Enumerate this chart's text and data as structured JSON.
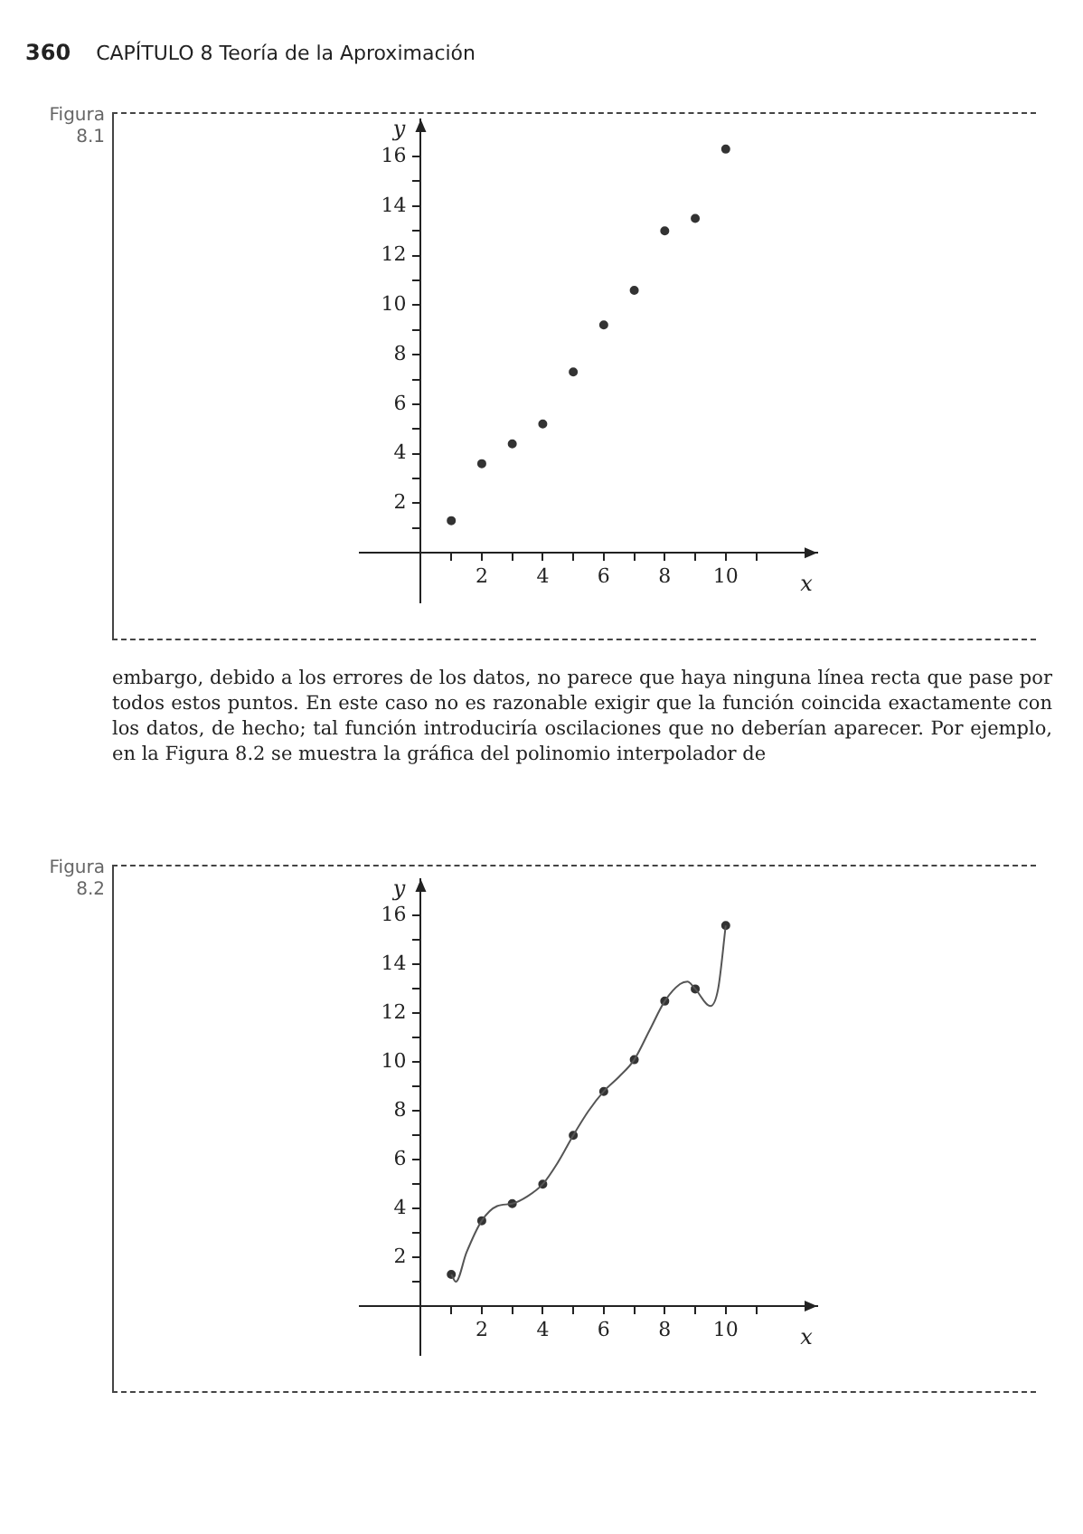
{
  "chart_data": [
    {
      "type": "scatter",
      "xlabel": "x",
      "ylabel": "y",
      "annotations": [
        "Figura 8.1",
        "360",
        "CAPÍTULO 8  Teoría de la Aproximación",
        "embargo, debido a los errores de los datos, no parece que haya ninguna línea recta que pase por todos estos puntos. En este caso no es razonable exigir que la función coincida exactamente con los datos, de hecho; tal función introduciría oscilaciones que no deberían aparecer. Por ejemplo, en la Figura 8.2 se muestra la gráfica del polinomio interpolador de"
      ],
      "x": [
        1,
        2,
        3,
        4,
        5,
        6,
        7,
        8,
        9,
        10
      ],
      "series": [
        {
          "color": "#333333",
          "values": [
            1.3,
            3.6,
            4.4,
            5.2,
            7.3,
            9.2,
            10.6,
            13.0,
            13.5,
            16.3
          ]
        }
      ],
      "marker": "circle",
      "grid": false,
      "legend": false,
      "xlim": [
        -2,
        13
      ],
      "ylim": [
        -2,
        17.5
      ],
      "xticks": [
        {
          "value": 1,
          "label": null
        },
        2,
        {
          "value": 3,
          "label": null
        },
        4,
        {
          "value": 5,
          "label": null
        },
        6,
        {
          "value": 7,
          "label": null
        },
        8,
        {
          "value": 9,
          "label": null
        },
        10,
        {
          "value": 11,
          "label": null
        }
      ],
      "yticks": [
        {
          "value": 1,
          "label": null
        },
        2,
        {
          "value": 3,
          "label": null
        },
        4,
        {
          "value": 5,
          "label": null
        },
        6,
        {
          "value": 7,
          "label": null
        },
        8,
        {
          "value": 9,
          "label": null
        },
        10,
        {
          "value": 11,
          "label": null
        },
        12,
        {
          "value": 13,
          "label": null
        },
        14,
        {
          "value": 15,
          "label": null
        },
        16
      ]
    },
    {
      "type": "scatter",
      "annotations": [
        "Figura 8.2"
      ],
      "xlabel": "x",
      "ylabel": "y",
      "series": [
        {
          "type": "line",
          "color": "#555555",
          "marker": "none",
          "x": [
            1,
            1.15,
            1.5,
            2,
            2.5,
            3,
            3.5,
            4,
            4.5,
            5,
            5.5,
            6,
            6.5,
            7,
            7.5,
            8,
            8.5,
            8.75,
            9,
            9.5,
            9.75,
            10
          ],
          "values": [
            1.3,
            1.0,
            2.2,
            3.5,
            4.1,
            4.2,
            4.5,
            5.0,
            5.9,
            7.0,
            8.0,
            8.8,
            9.4,
            10.1,
            11.3,
            12.5,
            13.2,
            13.3,
            13.0,
            12.3,
            13.0,
            15.6
          ]
        },
        {
          "type": "scatter",
          "color": "#333333",
          "marker": "circle",
          "x": [
            1,
            2,
            3,
            4,
            5,
            6,
            7,
            8,
            9,
            10
          ],
          "values": [
            1.3,
            3.5,
            4.2,
            5.0,
            7.0,
            8.8,
            10.1,
            12.5,
            13.0,
            15.6
          ]
        }
      ],
      "grid": false,
      "legend": false,
      "xlim": [
        -2,
        13
      ],
      "ylim": [
        -2,
        17.5
      ],
      "xticks": [
        {
          "value": 1,
          "label": null
        },
        2,
        {
          "value": 3,
          "label": null
        },
        4,
        {
          "value": 5,
          "label": null
        },
        6,
        {
          "value": 7,
          "label": null
        },
        8,
        {
          "value": 9,
          "label": null
        },
        10,
        {
          "value": 11,
          "label": null
        }
      ],
      "yticks": [
        {
          "value": 1,
          "label": null
        },
        2,
        {
          "value": 3,
          "label": null
        },
        4,
        {
          "value": 5,
          "label": null
        },
        6,
        {
          "value": 7,
          "label": null
        },
        8,
        {
          "value": 9,
          "label": null
        },
        10,
        {
          "value": 11,
          "label": null
        },
        12,
        {
          "value": 13,
          "label": null
        },
        14,
        {
          "value": 15,
          "label": null
        },
        16
      ]
    }
  ]
}
